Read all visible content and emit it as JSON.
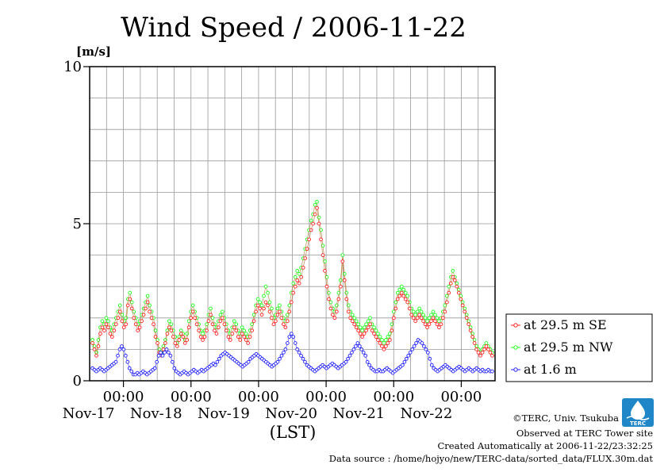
{
  "chart_data": {
    "type": "line",
    "title": "Wind Speed / 2006-11-22",
    "ylabel": "[m/s]",
    "xlabel": "(LST)",
    "ylim": [
      0,
      10
    ],
    "yticks": [
      "0",
      "5",
      "10"
    ],
    "xlim": [
      "2006-11-16 12:00",
      "2006-11-22 12:00"
    ],
    "xticks": [
      {
        "time": "00:00",
        "date": "Nov-17"
      },
      {
        "time": "00:00",
        "date": "Nov-18"
      },
      {
        "time": "00:00",
        "date": "Nov-19"
      },
      {
        "time": "00:00",
        "date": "Nov-20"
      },
      {
        "time": "00:00",
        "date": "Nov-21"
      },
      {
        "time": "00:00",
        "date": "Nov-22"
      }
    ],
    "grid": true,
    "legend_position": "right",
    "interval_hours": 0.5,
    "series": [
      {
        "name": "at 29.5 m SE",
        "color": "#ff2020",
        "values": [
          1.2,
          1.0,
          0.8,
          1.1,
          1.5,
          1.7,
          1.6,
          1.8,
          1.7,
          1.5,
          1.4,
          1.6,
          1.8,
          2.0,
          2.2,
          1.9,
          1.7,
          1.8,
          2.4,
          2.6,
          2.3,
          2.0,
          1.8,
          1.6,
          1.7,
          1.9,
          2.1,
          2.3,
          2.5,
          2.2,
          2.0,
          1.8,
          1.4,
          1.2,
          0.9,
          0.8,
          1.0,
          1.2,
          1.5,
          1.7,
          1.6,
          1.4,
          1.2,
          1.1,
          1.3,
          1.5,
          1.4,
          1.2,
          1.3,
          1.7,
          2.0,
          2.2,
          2.0,
          1.8,
          1.6,
          1.4,
          1.3,
          1.4,
          1.6,
          1.9,
          2.1,
          1.8,
          1.6,
          1.5,
          1.7,
          1.9,
          2.0,
          1.8,
          1.6,
          1.4,
          1.3,
          1.5,
          1.7,
          1.6,
          1.4,
          1.3,
          1.5,
          1.4,
          1.3,
          1.2,
          1.4,
          1.6,
          1.9,
          2.2,
          2.4,
          2.3,
          2.1,
          2.3,
          2.5,
          2.4,
          2.2,
          2.0,
          1.8,
          1.9,
          2.1,
          2.2,
          2.0,
          1.8,
          1.7,
          1.9,
          2.2,
          2.5,
          2.8,
          3.0,
          3.2,
          3.1,
          3.3,
          3.6,
          3.9,
          4.2,
          4.5,
          4.8,
          5.0,
          5.3,
          5.5,
          5.0,
          4.5,
          4.0,
          3.5,
          3.0,
          2.6,
          2.3,
          2.1,
          2.0,
          2.2,
          2.6,
          3.0,
          3.8,
          3.2,
          2.6,
          2.2,
          2.0,
          1.9,
          1.8,
          1.7,
          1.6,
          1.5,
          1.4,
          1.5,
          1.6,
          1.7,
          1.8,
          1.6,
          1.5,
          1.4,
          1.3,
          1.2,
          1.1,
          1.0,
          1.1,
          1.2,
          1.3,
          1.6,
          2.0,
          2.3,
          2.6,
          2.7,
          2.8,
          2.7,
          2.6,
          2.5,
          2.3,
          2.1,
          2.0,
          1.9,
          2.0,
          2.1,
          2.0,
          1.9,
          1.8,
          1.7,
          1.8,
          1.9,
          2.0,
          1.9,
          1.8,
          1.7,
          1.8,
          2.0,
          2.2,
          2.5,
          2.8,
          3.1,
          3.3,
          3.2,
          3.0,
          2.8,
          2.6,
          2.4,
          2.2,
          2.0,
          1.8,
          1.6,
          1.4,
          1.2,
          1.0,
          0.9,
          0.8,
          0.9,
          1.0,
          1.1,
          1.0,
          0.9,
          0.8
        ]
      },
      {
        "name": "at 29.5 m NW",
        "color": "#20ff20",
        "values": [
          1.3,
          1.1,
          0.9,
          1.3,
          1.7,
          1.9,
          1.8,
          2.0,
          1.9,
          1.7,
          1.6,
          1.8,
          2.0,
          2.2,
          2.4,
          2.1,
          1.9,
          2.0,
          2.6,
          2.8,
          2.5,
          2.2,
          2.0,
          1.8,
          1.9,
          2.1,
          2.3,
          2.5,
          2.7,
          2.4,
          2.2,
          2.0,
          1.6,
          1.3,
          1.0,
          0.9,
          1.1,
          1.3,
          1.6,
          1.9,
          1.8,
          1.6,
          1.4,
          1.2,
          1.4,
          1.6,
          1.5,
          1.3,
          1.5,
          1.9,
          2.2,
          2.4,
          2.2,
          2.0,
          1.8,
          1.6,
          1.5,
          1.6,
          1.8,
          2.1,
          2.3,
          2.0,
          1.8,
          1.7,
          1.9,
          2.1,
          2.2,
          2.0,
          1.8,
          1.6,
          1.5,
          1.7,
          1.9,
          1.8,
          1.6,
          1.5,
          1.7,
          1.6,
          1.5,
          1.4,
          1.6,
          1.8,
          2.1,
          2.4,
          2.6,
          2.5,
          2.4,
          2.7,
          3.0,
          2.8,
          2.5,
          2.3,
          2.0,
          2.1,
          2.3,
          2.4,
          2.2,
          2.0,
          1.9,
          2.1,
          2.4,
          2.8,
          3.1,
          3.3,
          3.5,
          3.4,
          3.6,
          3.9,
          4.2,
          4.5,
          4.8,
          5.1,
          5.3,
          5.6,
          5.7,
          5.2,
          4.8,
          4.3,
          3.8,
          3.3,
          2.8,
          2.5,
          2.3,
          2.2,
          2.4,
          2.8,
          3.2,
          4.0,
          3.4,
          2.8,
          2.4,
          2.2,
          2.1,
          2.0,
          1.9,
          1.8,
          1.7,
          1.6,
          1.7,
          1.8,
          1.9,
          2.0,
          1.8,
          1.7,
          1.6,
          1.5,
          1.4,
          1.3,
          1.2,
          1.3,
          1.4,
          1.5,
          1.8,
          2.2,
          2.5,
          2.8,
          2.9,
          3.0,
          2.9,
          2.8,
          2.7,
          2.5,
          2.3,
          2.2,
          2.1,
          2.2,
          2.3,
          2.2,
          2.1,
          2.0,
          1.9,
          2.0,
          2.1,
          2.2,
          2.1,
          2.0,
          1.9,
          2.0,
          2.2,
          2.4,
          2.7,
          3.0,
          3.3,
          3.5,
          3.3,
          3.1,
          2.9,
          2.7,
          2.5,
          2.3,
          2.1,
          1.9,
          1.7,
          1.5,
          1.3,
          1.1,
          1.0,
          0.9,
          1.0,
          1.1,
          1.2,
          1.1,
          1.0,
          0.9
        ]
      },
      {
        "name": "at 1.6 m",
        "color": "#2020ff",
        "values": [
          0.4,
          0.35,
          0.3,
          0.35,
          0.4,
          0.35,
          0.3,
          0.35,
          0.4,
          0.45,
          0.5,
          0.55,
          0.6,
          0.8,
          1.0,
          1.1,
          1.0,
          0.8,
          0.6,
          0.4,
          0.3,
          0.2,
          0.2,
          0.25,
          0.2,
          0.25,
          0.3,
          0.25,
          0.2,
          0.25,
          0.3,
          0.35,
          0.4,
          0.6,
          0.8,
          0.9,
          0.8,
          0.9,
          1.0,
          0.9,
          0.8,
          0.6,
          0.4,
          0.3,
          0.25,
          0.2,
          0.25,
          0.3,
          0.25,
          0.2,
          0.25,
          0.3,
          0.35,
          0.3,
          0.25,
          0.3,
          0.35,
          0.3,
          0.35,
          0.4,
          0.45,
          0.5,
          0.55,
          0.5,
          0.6,
          0.7,
          0.8,
          0.85,
          0.9,
          0.85,
          0.8,
          0.75,
          0.7,
          0.65,
          0.6,
          0.55,
          0.5,
          0.45,
          0.5,
          0.55,
          0.6,
          0.7,
          0.75,
          0.8,
          0.85,
          0.8,
          0.75,
          0.7,
          0.65,
          0.6,
          0.55,
          0.5,
          0.45,
          0.5,
          0.55,
          0.6,
          0.7,
          0.8,
          0.9,
          1.0,
          1.2,
          1.4,
          1.5,
          1.4,
          1.2,
          1.0,
          0.9,
          0.8,
          0.7,
          0.6,
          0.5,
          0.45,
          0.4,
          0.35,
          0.3,
          0.35,
          0.4,
          0.45,
          0.5,
          0.45,
          0.4,
          0.45,
          0.5,
          0.55,
          0.5,
          0.45,
          0.4,
          0.45,
          0.5,
          0.55,
          0.6,
          0.7,
          0.8,
          0.9,
          1.0,
          1.1,
          1.2,
          1.1,
          1.0,
          0.9,
          0.8,
          0.6,
          0.5,
          0.4,
          0.35,
          0.3,
          0.3,
          0.35,
          0.3,
          0.3,
          0.35,
          0.4,
          0.35,
          0.3,
          0.25,
          0.3,
          0.35,
          0.4,
          0.45,
          0.5,
          0.6,
          0.7,
          0.8,
          0.9,
          1.0,
          1.1,
          1.2,
          1.3,
          1.25,
          1.2,
          1.1,
          1.0,
          0.9,
          0.7,
          0.5,
          0.4,
          0.35,
          0.3,
          0.35,
          0.4,
          0.45,
          0.5,
          0.45,
          0.4,
          0.35,
          0.3,
          0.35,
          0.4,
          0.45,
          0.4,
          0.35,
          0.3,
          0.35,
          0.4,
          0.35,
          0.3,
          0.35,
          0.4,
          0.35,
          0.3,
          0.35,
          0.3,
          0.3,
          0.35,
          0.3,
          0.3
        ]
      }
    ]
  },
  "footer": {
    "copyright": "©TERC, Univ. Tsukuba",
    "observed": "Observed at TERC Tower site",
    "created": "Created Automatically at 2006-11-22/23:32:25",
    "source": "Data source : /home/hojyo/new/TERC-data/sorted_data/FLUX.30m.dat"
  },
  "logo": {
    "text": "TERC"
  }
}
